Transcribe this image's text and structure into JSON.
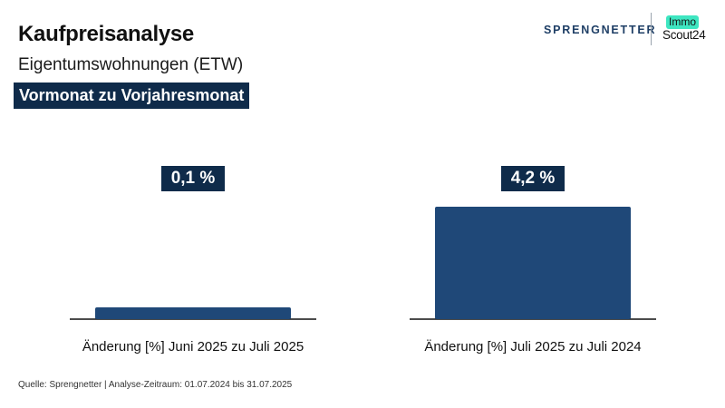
{
  "header": {
    "title": "Kaufpreisanalyse",
    "subtitle": "Eigentumswohnungen (ETW)",
    "banner": "Vormonat zu Vorjahresmonat"
  },
  "logos": {
    "sprengnetter": "SPRENGNETTER",
    "immo": "Immo",
    "scout": "Scout24",
    "sprengnetter_color": "#1f3f66",
    "immo_color": "#3ee6c1"
  },
  "chart_data": {
    "type": "bar",
    "categories": [
      "Änderung [%] Juni 2025 zu Juli 2025",
      "Änderung [%] Juli 2025 zu Juli 2024"
    ],
    "values": [
      0.1,
      4.2
    ],
    "value_labels": [
      "0,1 %",
      "4,2 %"
    ],
    "title": "",
    "xlabel": "",
    "ylabel": "",
    "ylim": [
      0,
      5
    ],
    "bar_color": "#1f4878",
    "label_bg": "#0f2b4a",
    "grid": false,
    "legend": "none"
  },
  "footer": {
    "source": "Quelle: Sprengnetter | Analyse-Zeitraum: 01.07.2024 bis 31.07.2025"
  }
}
